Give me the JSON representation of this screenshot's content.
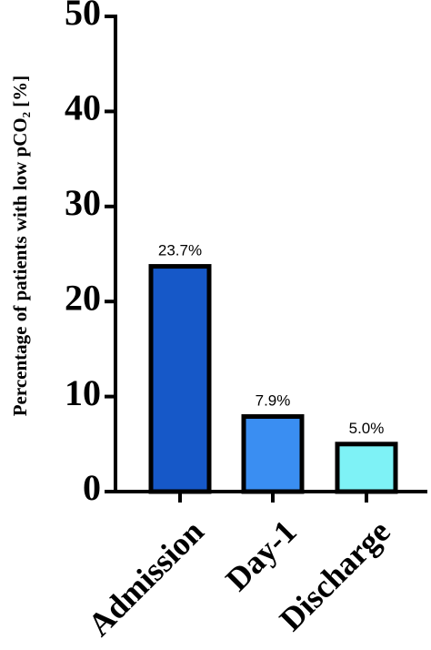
{
  "chart_data": {
    "type": "bar",
    "y_label": "Percentage of patients with low pCO₂ [%]",
    "categories": [
      "Admission",
      "Day-1",
      "Discharge"
    ],
    "values": [
      23.7,
      7.9,
      5.0
    ],
    "value_labels": [
      "23.7%",
      "7.9%",
      "5.0%"
    ],
    "colors": [
      "#1658c8",
      "#3a8ef2",
      "#7ef2f6"
    ],
    "ylim": [
      0,
      50
    ],
    "yticks": [
      0,
      10,
      20,
      30,
      40,
      50
    ],
    "grid": false
  }
}
